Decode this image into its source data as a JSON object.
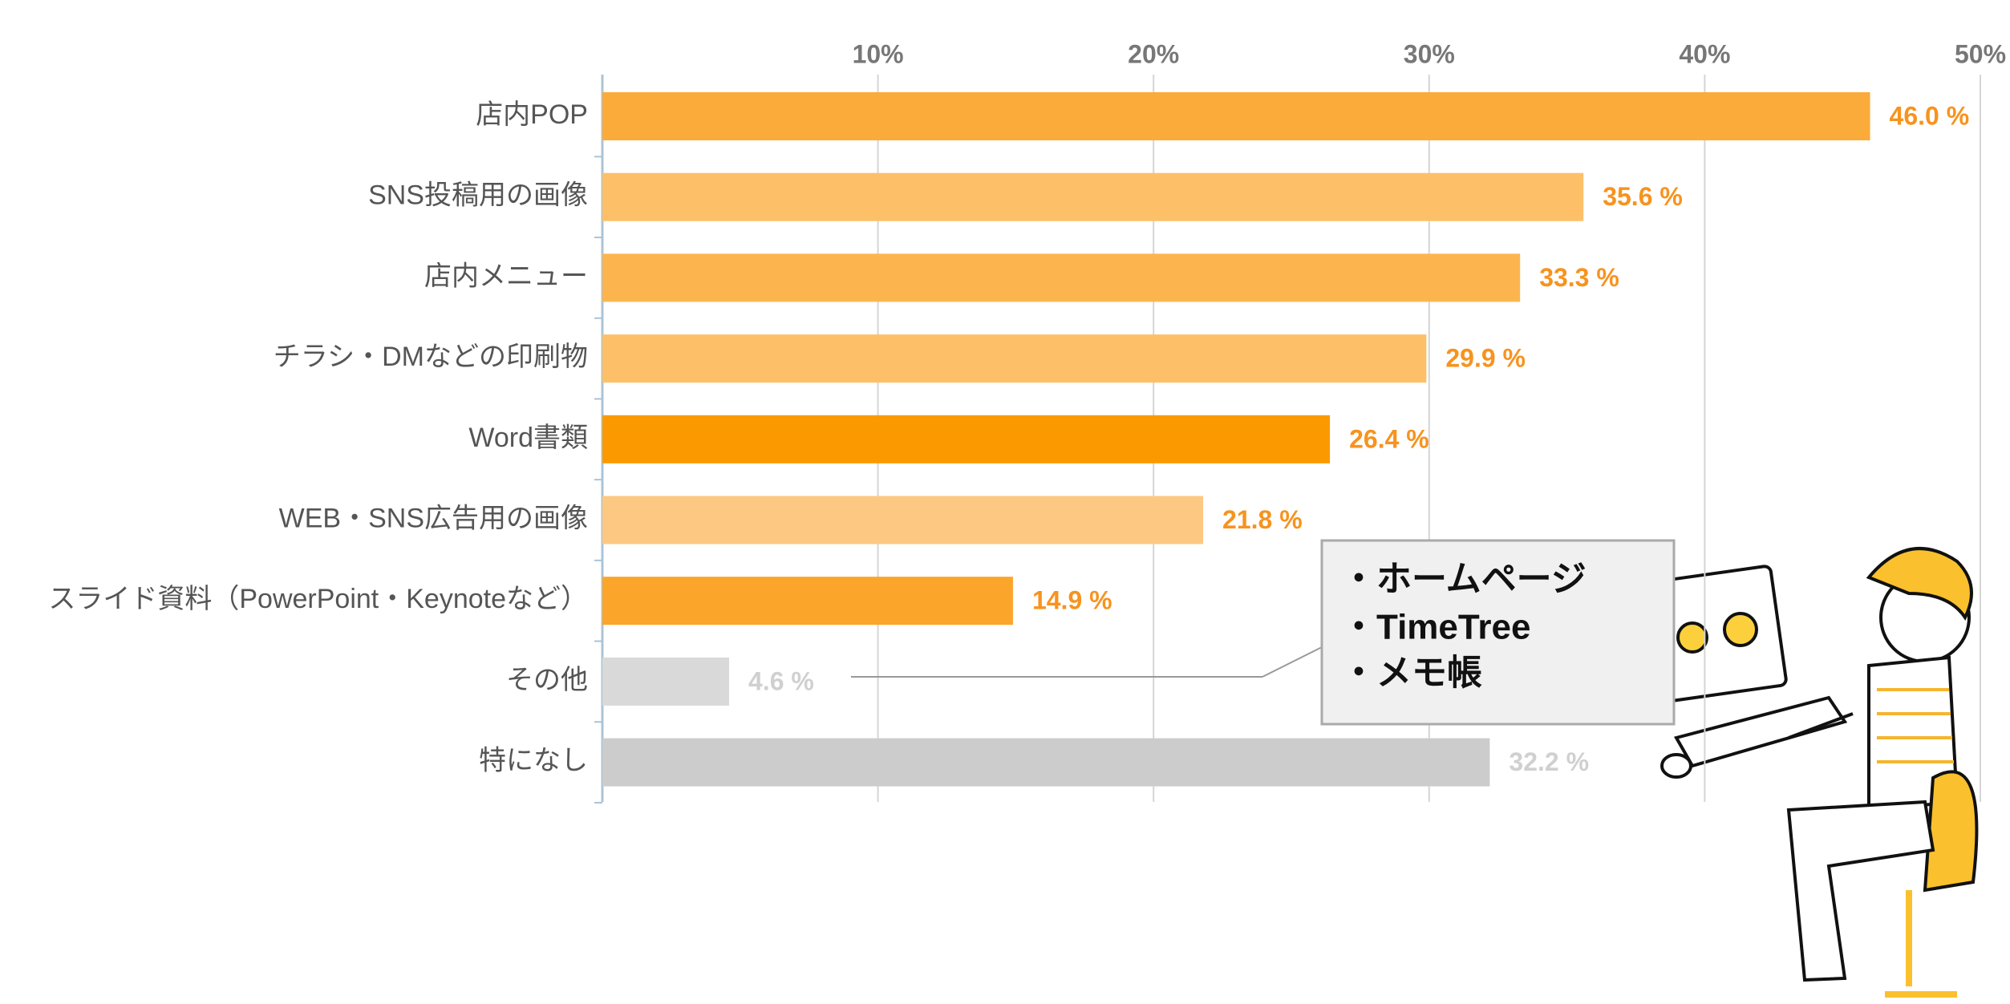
{
  "chart_data": {
    "type": "bar",
    "orientation": "horizontal",
    "categories": [
      "店内POP",
      "SNS投稿用の画像",
      "店内メニュー",
      "チラシ・DMなどの印刷物",
      "Word書類",
      "WEB・SNS広告用の画像",
      "スライド資料（PowerPoint・Keynoteなど）",
      "その他",
      "特になし"
    ],
    "values": [
      46.0,
      35.6,
      33.3,
      29.9,
      26.4,
      21.8,
      14.9,
      4.6,
      32.2
    ],
    "value_labels": [
      "46.0 %",
      "35.6 %",
      "33.3 %",
      "29.9 %",
      "26.4 %",
      "21.8 %",
      "14.9 %",
      "4.6 %",
      "32.2 %"
    ],
    "colors": [
      "#fbab3a",
      "#fdc068",
      "#fcb54e",
      "#fdc068",
      "#fb9a00",
      "#fdc882",
      "#fba52a",
      "#d9d9d9",
      "#cccccc"
    ],
    "value_label_colors": [
      "#f7931e",
      "#f7931e",
      "#f7931e",
      "#f7931e",
      "#f7931e",
      "#f7931e",
      "#f7931e",
      "#d0d0d0",
      "#d0d0d0"
    ],
    "xlim": [
      0,
      50
    ],
    "xticks": [
      {
        "value": 10,
        "label": "10%"
      },
      {
        "value": 20,
        "label": "20%"
      },
      {
        "value": 30,
        "label": "30%"
      },
      {
        "value": 40,
        "label": "40%"
      },
      {
        "value": 50,
        "label": "50%"
      }
    ],
    "grid": true,
    "annotations": [
      "・ホームページ",
      "・TimeTree",
      "・メモ帳"
    ]
  }
}
